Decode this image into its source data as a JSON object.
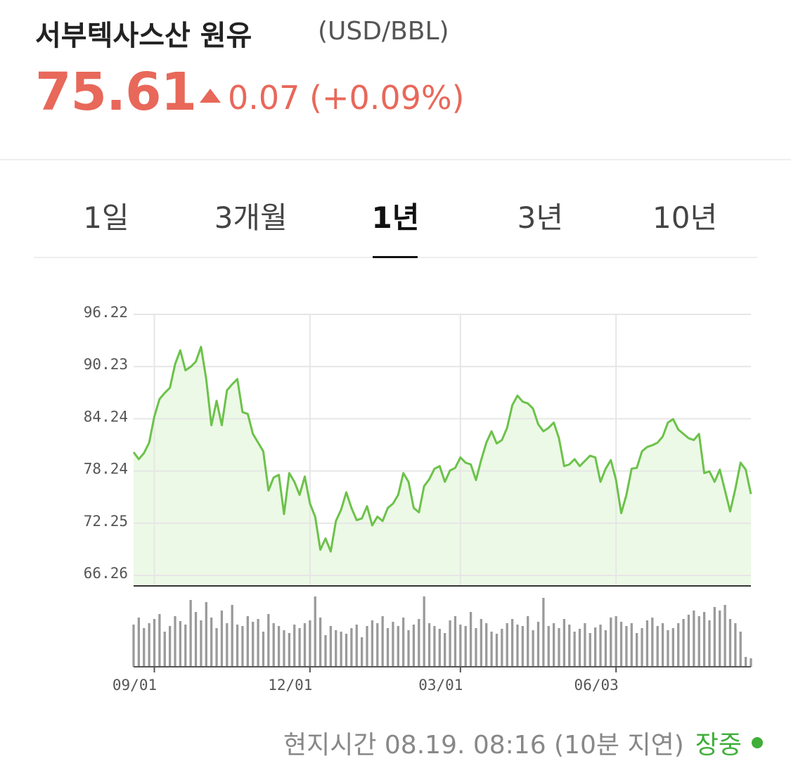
{
  "header": {
    "title": "서부텍사스산 원유",
    "unit": "(USD/BBL)",
    "price": "75.61",
    "change": "0.07",
    "change_percent": "(+0.09%)"
  },
  "tabs": {
    "items": [
      "1일",
      "3개월",
      "1년",
      "3년",
      "10년"
    ],
    "active": 2
  },
  "chart_data": {
    "type": "line",
    "color": "#6cc24a",
    "fill": "#ecf9e6",
    "grid": true,
    "xlim": [
      0,
      119
    ],
    "xticks": [
      {
        "value": 4,
        "label": "09/01"
      },
      {
        "value": 34,
        "label": "12/01"
      },
      {
        "value": 63,
        "label": "03/01"
      },
      {
        "value": 93,
        "label": "06/03"
      }
    ],
    "ylim": [
      65.05,
      96.22
    ],
    "yticks": [
      96.22,
      90.23,
      84.24,
      78.24,
      72.25,
      66.26
    ],
    "values": [
      80.4,
      79.6,
      80.3,
      81.5,
      84.5,
      86.5,
      87.2,
      87.8,
      90.5,
      92.1,
      89.8,
      90.2,
      90.8,
      92.5,
      88.8,
      83.5,
      86.3,
      83.5,
      87.5,
      88.2,
      88.8,
      85,
      84.8,
      82.5,
      81.5,
      80.5,
      76,
      77.5,
      77.8,
      73.3,
      78,
      77,
      75.5,
      77.6,
      74.5,
      73,
      69.2,
      70.5,
      69,
      72.5,
      73.8,
      75.8,
      74,
      72.6,
      72.8,
      74.2,
      72,
      73,
      72.5,
      74,
      74.5,
      75.5,
      78,
      77,
      74,
      73.5,
      76.5,
      77.3,
      78.5,
      78.8,
      77,
      78.3,
      78.6,
      79.8,
      79.2,
      79,
      77.2,
      79.5,
      81.5,
      82.8,
      81.4,
      81.8,
      83.2,
      85.8,
      86.9,
      86.2,
      86,
      85.4,
      83.6,
      82.8,
      83.2,
      83.8,
      82,
      78.8,
      79,
      79.6,
      78.8,
      79.4,
      80,
      79.8,
      77,
      78.5,
      79.5,
      77.2,
      73.4,
      75.5,
      78.5,
      78.6,
      80.5,
      81,
      81.2,
      81.5,
      82.2,
      83.8,
      84.2,
      83,
      82.5,
      82,
      81.8,
      82.5,
      78,
      78.2,
      77,
      78.4,
      76,
      73.6,
      76.2,
      79.2,
      78.4,
      75.6
    ],
    "volume_color": "#9a9a9a",
    "volume_ylim": [
      0,
      100
    ],
    "volume": [
      60,
      70,
      55,
      62,
      68,
      75,
      50,
      58,
      72,
      65,
      60,
      95,
      78,
      66,
      92,
      70,
      55,
      80,
      62,
      88,
      60,
      58,
      72,
      64,
      68,
      50,
      75,
      62,
      58,
      52,
      48,
      60,
      55,
      62,
      66,
      100,
      70,
      45,
      58,
      52,
      50,
      47,
      55,
      60,
      42,
      58,
      66,
      62,
      72,
      55,
      64,
      58,
      70,
      52,
      60,
      68,
      100,
      62,
      58,
      54,
      48,
      66,
      72,
      60,
      58,
      78,
      55,
      68,
      62,
      50,
      47,
      54,
      62,
      68,
      60,
      58,
      72,
      52,
      64,
      98,
      58,
      62,
      55,
      68,
      60,
      50,
      54,
      62,
      48,
      56,
      60,
      52,
      70,
      72,
      64,
      58,
      62,
      48,
      55,
      66,
      70,
      58,
      62,
      52,
      55,
      62,
      68,
      74,
      80,
      72,
      78,
      66,
      85,
      80,
      88,
      68,
      62,
      50,
      14,
      12
    ]
  },
  "footer": {
    "time": "현지시간 08.19. 08:16 (10분 지연)",
    "status": "장중"
  }
}
